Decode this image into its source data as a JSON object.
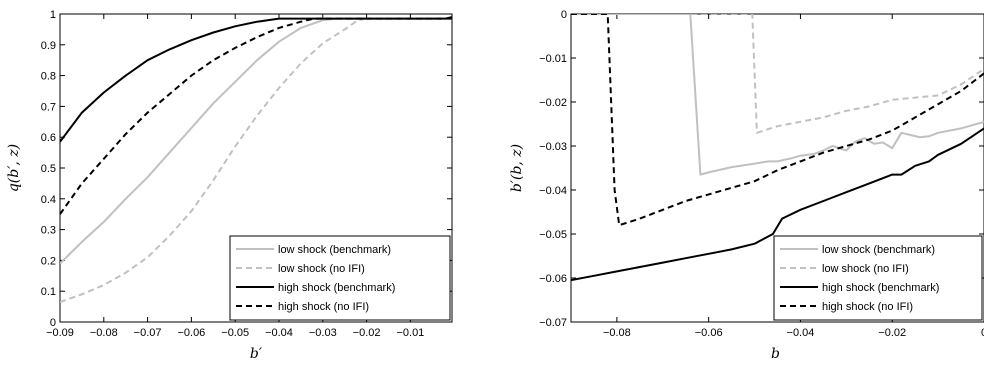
{
  "chart_data": [
    {
      "type": "line",
      "xlabel": "b′",
      "ylabel": "q(b′, z)",
      "xlim": [
        -0.09,
        -0.0005
      ],
      "ylim": [
        0,
        1
      ],
      "xticks": [
        -0.09,
        -0.08,
        -0.07,
        -0.06,
        -0.05,
        -0.04,
        -0.03,
        -0.02,
        -0.01
      ],
      "xtick_labels": [
        "−0.09",
        "−0.08",
        "−0.07",
        "−0.06",
        "−0.05",
        "−0.04",
        "−0.03",
        "−0.02",
        "−0.01"
      ],
      "yticks": [
        0,
        0.1,
        0.2,
        0.3,
        0.4,
        0.5,
        0.6,
        0.7,
        0.8,
        0.9,
        1
      ],
      "ytick_labels": [
        "0",
        "0.1",
        "0.2",
        "0.3",
        "0.4",
        "0.5",
        "0.6",
        "0.7",
        "0.8",
        "0.9",
        "1"
      ],
      "grid": false,
      "legend_position": "bottom-right",
      "series": [
        {
          "name": "low shock (benchmark)",
          "color": "#c0c0c0",
          "dash": "solid",
          "width": 2,
          "x": [
            -0.09,
            -0.085,
            -0.08,
            -0.075,
            -0.07,
            -0.065,
            -0.06,
            -0.055,
            -0.05,
            -0.045,
            -0.04,
            -0.035,
            -0.03,
            -0.027,
            -0.025,
            -0.02,
            -0.01,
            -0.0005
          ],
          "y": [
            0.19,
            0.26,
            0.325,
            0.4,
            0.47,
            0.55,
            0.63,
            0.71,
            0.78,
            0.85,
            0.91,
            0.955,
            0.98,
            0.985,
            0.985,
            0.985,
            0.985,
            0.985
          ]
        },
        {
          "name": "low shock (no IFI)",
          "color": "#c0c0c0",
          "dash": "dashed",
          "width": 2,
          "x": [
            -0.09,
            -0.085,
            -0.08,
            -0.075,
            -0.07,
            -0.065,
            -0.06,
            -0.055,
            -0.05,
            -0.045,
            -0.04,
            -0.035,
            -0.03,
            -0.025,
            -0.022,
            -0.02,
            -0.01,
            -0.0005
          ],
          "y": [
            0.065,
            0.09,
            0.12,
            0.16,
            0.21,
            0.28,
            0.36,
            0.46,
            0.57,
            0.67,
            0.76,
            0.84,
            0.905,
            0.95,
            0.98,
            0.985,
            0.985,
            0.985
          ]
        },
        {
          "name": "high shock (benchmark)",
          "color": "#000000",
          "dash": "solid",
          "width": 2,
          "x": [
            -0.09,
            -0.085,
            -0.08,
            -0.075,
            -0.07,
            -0.065,
            -0.06,
            -0.055,
            -0.05,
            -0.045,
            -0.04,
            -0.035,
            -0.03,
            -0.02,
            -0.01,
            -0.002,
            -0.0005
          ],
          "y": [
            0.585,
            0.68,
            0.745,
            0.8,
            0.85,
            0.885,
            0.915,
            0.94,
            0.96,
            0.975,
            0.985,
            0.985,
            0.985,
            0.985,
            0.985,
            0.985,
            0.99
          ]
        },
        {
          "name": "high shock (no IFI)",
          "color": "#000000",
          "dash": "dashed",
          "width": 2,
          "x": [
            -0.09,
            -0.085,
            -0.08,
            -0.075,
            -0.07,
            -0.065,
            -0.06,
            -0.055,
            -0.05,
            -0.045,
            -0.04,
            -0.035,
            -0.032,
            -0.03,
            -0.02,
            -0.01,
            -0.0005
          ],
          "y": [
            0.35,
            0.45,
            0.53,
            0.61,
            0.68,
            0.74,
            0.8,
            0.85,
            0.89,
            0.925,
            0.955,
            0.975,
            0.985,
            0.985,
            0.985,
            0.985,
            0.985
          ]
        }
      ]
    },
    {
      "type": "line",
      "xlabel": "b",
      "ylabel": "b′(b, z)",
      "xlim": [
        -0.09,
        0
      ],
      "ylim": [
        -0.07,
        0
      ],
      "xticks": [
        -0.08,
        -0.06,
        -0.04,
        -0.02,
        0
      ],
      "xtick_labels": [
        "−0.08",
        "−0.06",
        "−0.04",
        "−0.02",
        "0"
      ],
      "yticks": [
        0,
        -0.01,
        -0.02,
        -0.03,
        -0.04,
        -0.05,
        -0.06,
        -0.07
      ],
      "ytick_labels": [
        "0",
        "−0.01",
        "−0.02",
        "−0.03",
        "−0.04",
        "−0.05",
        "−0.06",
        "−0.07"
      ],
      "grid": false,
      "legend_position": "bottom-right",
      "series": [
        {
          "name": "low shock (benchmark)",
          "color": "#c0c0c0",
          "dash": "solid",
          "width": 2,
          "x": [
            -0.09,
            -0.064,
            -0.0618,
            -0.06,
            -0.055,
            -0.05,
            -0.047,
            -0.045,
            -0.042,
            -0.04,
            -0.037,
            -0.035,
            -0.033,
            -0.03,
            -0.028,
            -0.026,
            -0.024,
            -0.022,
            -0.02,
            -0.018,
            -0.016,
            -0.014,
            -0.012,
            -0.01,
            -0.005,
            0
          ],
          "y": [
            0,
            0,
            -0.0365,
            -0.036,
            -0.0348,
            -0.034,
            -0.0335,
            -0.0335,
            -0.0328,
            -0.0322,
            -0.0318,
            -0.031,
            -0.03,
            -0.031,
            -0.029,
            -0.0282,
            -0.0295,
            -0.0292,
            -0.0305,
            -0.027,
            -0.0275,
            -0.028,
            -0.0278,
            -0.027,
            -0.026,
            -0.0245
          ]
        },
        {
          "name": "low shock (no IFI)",
          "color": "#c0c0c0",
          "dash": "dashed",
          "width": 2,
          "x": [
            -0.09,
            -0.0505,
            -0.0495,
            -0.045,
            -0.04,
            -0.035,
            -0.03,
            -0.025,
            -0.02,
            -0.015,
            -0.01,
            -0.005,
            0
          ],
          "y": [
            0,
            0,
            -0.027,
            -0.0255,
            -0.0245,
            -0.0235,
            -0.022,
            -0.021,
            -0.0195,
            -0.019,
            -0.0185,
            -0.016,
            -0.0125
          ]
        },
        {
          "name": "high shock (benchmark)",
          "color": "#000000",
          "dash": "solid",
          "width": 2,
          "x": [
            -0.09,
            -0.085,
            -0.08,
            -0.075,
            -0.07,
            -0.065,
            -0.06,
            -0.055,
            -0.05,
            -0.046,
            -0.044,
            -0.04,
            -0.035,
            -0.03,
            -0.025,
            -0.02,
            -0.018,
            -0.015,
            -0.012,
            -0.01,
            -0.005,
            0
          ],
          "y": [
            -0.0605,
            -0.0595,
            -0.0585,
            -0.0575,
            -0.0565,
            -0.0555,
            -0.0545,
            -0.0535,
            -0.0522,
            -0.05,
            -0.0465,
            -0.0445,
            -0.0425,
            -0.0405,
            -0.0385,
            -0.0365,
            -0.0365,
            -0.0345,
            -0.0335,
            -0.032,
            -0.0295,
            -0.026
          ]
        },
        {
          "name": "high shock (no IFI)",
          "color": "#000000",
          "dash": "dashed",
          "width": 2,
          "x": [
            -0.09,
            -0.082,
            -0.0805,
            -0.0795,
            -0.075,
            -0.07,
            -0.065,
            -0.06,
            -0.055,
            -0.05,
            -0.045,
            -0.04,
            -0.035,
            -0.03,
            -0.025,
            -0.02,
            -0.015,
            -0.01,
            -0.005,
            0
          ],
          "y": [
            0,
            0,
            -0.04,
            -0.048,
            -0.0465,
            -0.0445,
            -0.0425,
            -0.041,
            -0.0395,
            -0.038,
            -0.0355,
            -0.0335,
            -0.0315,
            -0.03,
            -0.0285,
            -0.0265,
            -0.0235,
            -0.0205,
            -0.0175,
            -0.0135
          ]
        }
      ]
    }
  ]
}
